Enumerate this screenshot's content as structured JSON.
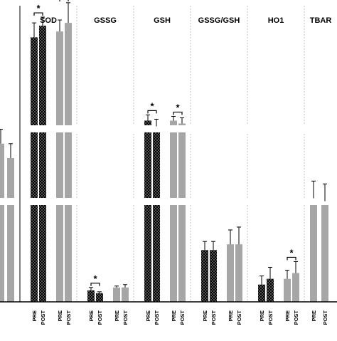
{
  "chart_data": {
    "type": "bar",
    "style": "grouped bar chart with broken y-axis, no numeric axis shown",
    "colors": {
      "dotted_bar": "#000000",
      "dotted_bar_dots": "#ffffff",
      "gray_bar": "#a6a6a6",
      "divider": "#c0c0c0",
      "axis": "#000000"
    },
    "panels": [
      {
        "title": "",
        "bars": [
          {
            "label": "",
            "pattern": "gray",
            "value": 0.55,
            "err": 0.05
          },
          {
            "label": "",
            "pattern": "gray",
            "value": 0.5,
            "err": 0.05
          }
        ],
        "sig": []
      },
      {
        "title": "SOD",
        "bars": [
          {
            "label": "PRE",
            "pattern": "dotted",
            "value": 0.92,
            "err": 0.05
          },
          {
            "label": "POST",
            "pattern": "dotted",
            "value": 0.96,
            "err": 0.03
          },
          {
            "label": "PRE",
            "pattern": "gray",
            "value": 0.94,
            "err": 0.04
          },
          {
            "label": "POST",
            "pattern": "gray",
            "value": 0.97,
            "err": 0.07
          }
        ],
        "sig": [
          {
            "from": 0,
            "to": 1,
            "text": "*"
          },
          {
            "from": 2,
            "to": 3,
            "text": "*"
          }
        ]
      },
      {
        "title": "GSSG",
        "bars": [
          {
            "label": "PRE",
            "pattern": "dotted",
            "value": 0.04,
            "err": 0.01
          },
          {
            "label": "POST",
            "pattern": "dotted",
            "value": 0.03,
            "err": 0.005
          },
          {
            "label": "PRE",
            "pattern": "gray",
            "value": 0.05,
            "err": 0.005
          },
          {
            "label": "POST",
            "pattern": "gray",
            "value": 0.05,
            "err": 0.01
          }
        ],
        "sig": [
          {
            "from": 0,
            "to": 1,
            "text": "*"
          }
        ]
      },
      {
        "title": "GSH",
        "bars": [
          {
            "label": "PRE",
            "pattern": "dotted",
            "value": 0.63,
            "err": 0.02
          },
          {
            "label": "POST",
            "pattern": "dotted",
            "value": 0.61,
            "err": 0.025
          },
          {
            "label": "PRE",
            "pattern": "gray",
            "value": 0.63,
            "err": 0.015
          },
          {
            "label": "POST",
            "pattern": "gray",
            "value": 0.62,
            "err": 0.02
          }
        ],
        "sig": [
          {
            "from": 0,
            "to": 1,
            "text": "*"
          },
          {
            "from": 2,
            "to": 3,
            "text": "*"
          }
        ]
      },
      {
        "title": "GSSG/GSH",
        "bars": [
          {
            "label": "PRE",
            "pattern": "dotted",
            "value": 0.18,
            "err": 0.03
          },
          {
            "label": "POST",
            "pattern": "dotted",
            "value": 0.18,
            "err": 0.03
          },
          {
            "label": "PRE",
            "pattern": "gray",
            "value": 0.2,
            "err": 0.05
          },
          {
            "label": "POST",
            "pattern": "gray",
            "value": 0.2,
            "err": 0.06
          }
        ],
        "sig": []
      },
      {
        "title": "HO1",
        "bars": [
          {
            "label": "PRE",
            "pattern": "dotted",
            "value": 0.06,
            "err": 0.03
          },
          {
            "label": "POST",
            "pattern": "dotted",
            "value": 0.08,
            "err": 0.04
          },
          {
            "label": "PRE",
            "pattern": "gray",
            "value": 0.08,
            "err": 0.03
          },
          {
            "label": "POST",
            "pattern": "gray",
            "value": 0.1,
            "err": 0.04
          }
        ],
        "sig": [
          {
            "from": 2,
            "to": 3,
            "text": "*"
          }
        ]
      },
      {
        "title": "TBAR",
        "bars": [
          {
            "label": "PRE",
            "pattern": "gray",
            "value": 0.36,
            "err": 0.06
          },
          {
            "label": "POST",
            "pattern": "gray",
            "value": 0.35,
            "err": 0.06
          }
        ],
        "sig": []
      }
    ]
  }
}
